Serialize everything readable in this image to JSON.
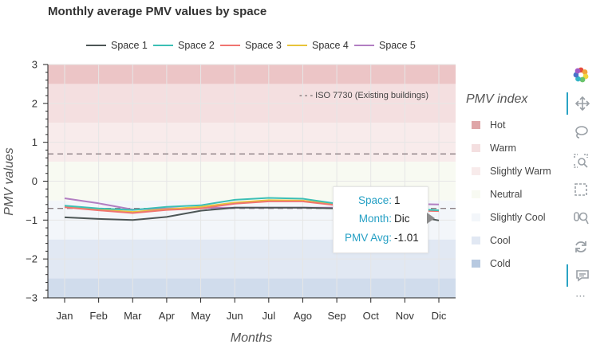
{
  "chart_data": {
    "type": "line",
    "title": "Monthly average PMV values by space",
    "xlabel": "Months",
    "ylabel": "PMV values",
    "categories": [
      "Jan",
      "Feb",
      "Mar",
      "Apr",
      "May",
      "Jun",
      "Jul",
      "Ago",
      "Sep",
      "Oct",
      "Nov",
      "Dic"
    ],
    "ylim": [
      -3,
      3
    ],
    "yticks": [
      "3",
      "2",
      "1",
      "0",
      "−1",
      "−2",
      "−3"
    ],
    "series": [
      {
        "name": "Space 1",
        "color": "#4d5656",
        "values": [
          -0.93,
          -0.97,
          -1.0,
          -0.92,
          -0.76,
          -0.68,
          -0.68,
          -0.68,
          -0.7,
          -0.74,
          -0.85,
          -1.01
        ]
      },
      {
        "name": "Space 2",
        "color": "#3cbfb5",
        "values": [
          -0.63,
          -0.7,
          -0.74,
          -0.66,
          -0.62,
          -0.48,
          -0.43,
          -0.45,
          -0.58,
          -0.66,
          -0.7,
          -0.75
        ]
      },
      {
        "name": "Space 3",
        "color": "#f07470",
        "values": [
          -0.67,
          -0.75,
          -0.82,
          -0.74,
          -0.7,
          -0.58,
          -0.52,
          -0.52,
          -0.62,
          -0.7,
          -0.75,
          -0.77
        ]
      },
      {
        "name": "Space 4",
        "color": "#e8c43a",
        "values": [
          -0.65,
          -0.73,
          -0.79,
          -0.72,
          -0.66,
          -0.55,
          -0.49,
          -0.5,
          -0.6,
          -0.68,
          -0.73,
          -0.75
        ]
      },
      {
        "name": "Space 5",
        "color": "#b27ec2",
        "values": [
          -0.44,
          -0.57,
          -0.73,
          -0.7,
          -0.69,
          -0.68,
          -0.68,
          -0.68,
          -0.68,
          -0.62,
          -0.58,
          -0.6
        ]
      }
    ],
    "bands": [
      {
        "name": "Hot",
        "from": 2.5,
        "to": 3,
        "color": "#ecc5c6"
      },
      {
        "name": "Warm",
        "from": 1.5,
        "to": 2.5,
        "color": "#f4dfe0"
      },
      {
        "name": "Slightly Warm",
        "from": 0.5,
        "to": 1.5,
        "color": "#f8ebeb"
      },
      {
        "name": "Neutral",
        "from": -0.5,
        "to": 0.5,
        "color": "#f8faf2"
      },
      {
        "name": "Slightly Cool",
        "from": -1.5,
        "to": -0.5,
        "color": "#f3f6fa"
      },
      {
        "name": "Cool",
        "from": -2.5,
        "to": -1.5,
        "color": "#e1e8f3"
      },
      {
        "name": "Cold",
        "from": -3,
        "to": -2.5,
        "color": "#d0dcec"
      }
    ],
    "reference_lines": [
      {
        "name": "ISO 7730 (Existing buildings)",
        "values": [
          0.7,
          -0.7
        ],
        "color": "#8c8084"
      }
    ],
    "annotation": "- - - ISO 7730 (Existing buildings)",
    "legend_position": "top",
    "grid": true
  },
  "legend_title": "PMV index",
  "tooltip": {
    "rows": [
      {
        "key": "Space:",
        "value": "1"
      },
      {
        "key": "Month:",
        "value": "Dic"
      },
      {
        "key": "PMV Avg:",
        "value": "-1.01"
      }
    ]
  },
  "toolbar": {
    "items": [
      {
        "icon": "bokeh-logo-icon"
      },
      {
        "icon": "pan-icon",
        "active": true
      },
      {
        "icon": "lasso-select-icon"
      },
      {
        "icon": "zoom-box-icon"
      },
      {
        "icon": "box-select-icon"
      },
      {
        "icon": "wheel-zoom-icon"
      },
      {
        "icon": "reset-icon"
      },
      {
        "icon": "hover-icon",
        "active": true
      },
      {
        "icon": "more-icon"
      }
    ]
  }
}
